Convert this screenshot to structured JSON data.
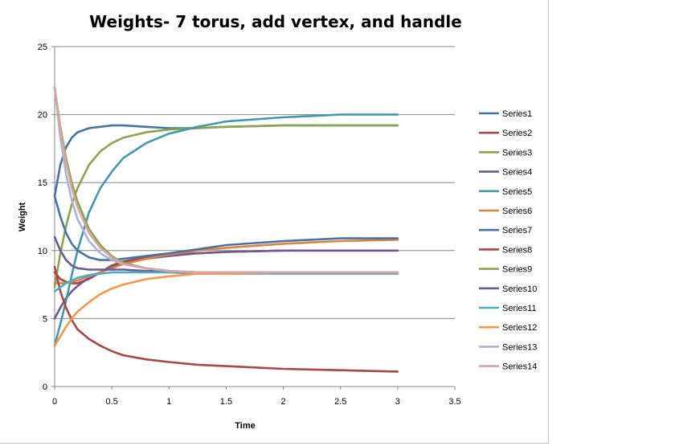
{
  "chart_data": {
    "type": "line",
    "title": "Weights- 7 torus, add vertex, and handle",
    "xlabel": "Time",
    "ylabel": "Weight",
    "xlim": [
      0,
      3.5
    ],
    "ylim": [
      0,
      25
    ],
    "xticks": [
      "0",
      "0.5",
      "1",
      "1.5",
      "2",
      "2.5",
      "3",
      "3.5"
    ],
    "yticks": [
      "0",
      "5",
      "10",
      "15",
      "20",
      "25"
    ],
    "grid": "horizontal",
    "legend": "right",
    "x": [
      0,
      0.05,
      0.1,
      0.15,
      0.2,
      0.3,
      0.4,
      0.5,
      0.6,
      0.8,
      1.0,
      1.25,
      1.5,
      2.0,
      2.5,
      3.0
    ],
    "series": [
      {
        "name": "Series1",
        "color": "#4572a7",
        "values": [
          14,
          16.3,
          17.6,
          18.3,
          18.7,
          19.0,
          19.1,
          19.2,
          19.2,
          19.1,
          19.0,
          19.0,
          19.1,
          19.2,
          19.2,
          19.2
        ]
      },
      {
        "name": "Series2",
        "color": "#aa4643",
        "values": [
          8.4,
          7.9,
          7.7,
          7.6,
          7.6,
          7.9,
          8.4,
          8.9,
          9.2,
          9.5,
          9.7,
          9.8,
          9.9,
          10.0,
          10.0,
          10.0
        ]
      },
      {
        "name": "Series3",
        "color": "#89a54e",
        "values": [
          7.3,
          9.8,
          11.8,
          13.4,
          14.6,
          16.3,
          17.3,
          17.9,
          18.3,
          18.7,
          18.9,
          19.0,
          19.1,
          19.2,
          19.2,
          19.2
        ]
      },
      {
        "name": "Series4",
        "color": "#71588f",
        "values": [
          5,
          5.8,
          6.5,
          7.0,
          7.4,
          8.0,
          8.4,
          8.8,
          9.1,
          9.4,
          9.6,
          9.8,
          9.9,
          10.0,
          10.0,
          10.0
        ]
      },
      {
        "name": "Series5",
        "color": "#4198af",
        "values": [
          3,
          4.6,
          6.3,
          8.2,
          10.0,
          12.8,
          14.6,
          15.8,
          16.8,
          17.9,
          18.6,
          19.1,
          19.5,
          19.8,
          20.0,
          20.0
        ]
      },
      {
        "name": "Series6",
        "color": "#db843d",
        "values": [
          7.6,
          7.6,
          7.6,
          7.7,
          7.8,
          8.1,
          8.4,
          8.7,
          9.0,
          9.4,
          9.7,
          10.0,
          10.2,
          10.5,
          10.7,
          10.8
        ]
      },
      {
        "name": "Series7",
        "color": "#4572a7",
        "values": [
          14,
          12.5,
          11.3,
          10.5,
          10.0,
          9.5,
          9.3,
          9.3,
          9.4,
          9.6,
          9.8,
          10.1,
          10.4,
          10.7,
          10.9,
          10.9
        ]
      },
      {
        "name": "Series8",
        "color": "#aa4643",
        "values": [
          8.8,
          7.0,
          5.8,
          4.9,
          4.2,
          3.5,
          3.0,
          2.6,
          2.3,
          2.0,
          1.8,
          1.6,
          1.5,
          1.3,
          1.2,
          1.1
        ]
      },
      {
        "name": "Series9",
        "color": "#89a54e",
        "values": [
          22,
          19.1,
          16.8,
          15.0,
          13.6,
          11.6,
          10.4,
          9.6,
          9.1,
          8.7,
          8.5,
          8.4,
          8.4,
          8.4,
          8.4,
          8.4
        ]
      },
      {
        "name": "Series10",
        "color": "#71588f",
        "values": [
          11,
          10.0,
          9.3,
          8.9,
          8.7,
          8.6,
          8.6,
          8.6,
          8.6,
          8.5,
          8.5,
          8.4,
          8.4,
          8.4,
          8.4,
          8.4
        ]
      },
      {
        "name": "Series11",
        "color": "#4bacc6",
        "values": [
          7.0,
          7.3,
          7.6,
          7.8,
          8.0,
          8.2,
          8.3,
          8.4,
          8.4,
          8.4,
          8.4,
          8.3,
          8.3,
          8.3,
          8.3,
          8.3
        ]
      },
      {
        "name": "Series12",
        "color": "#f79646",
        "values": [
          3,
          3.7,
          4.4,
          5.0,
          5.5,
          6.2,
          6.8,
          7.2,
          7.5,
          7.9,
          8.1,
          8.3,
          8.3,
          8.4,
          8.4,
          8.4
        ]
      },
      {
        "name": "Series13",
        "color": "#a5b6d5",
        "values": [
          22,
          18.3,
          15.6,
          13.7,
          12.3,
          10.7,
          9.8,
          9.3,
          9.0,
          8.7,
          8.5,
          8.4,
          8.4,
          8.4,
          8.4,
          8.4
        ]
      },
      {
        "name": "Series14",
        "color": "#d9a3a3",
        "values": [
          22,
          18.9,
          16.5,
          14.6,
          13.2,
          11.3,
          10.2,
          9.5,
          9.0,
          8.7,
          8.5,
          8.4,
          8.4,
          8.4,
          8.4,
          8.4
        ]
      }
    ]
  }
}
